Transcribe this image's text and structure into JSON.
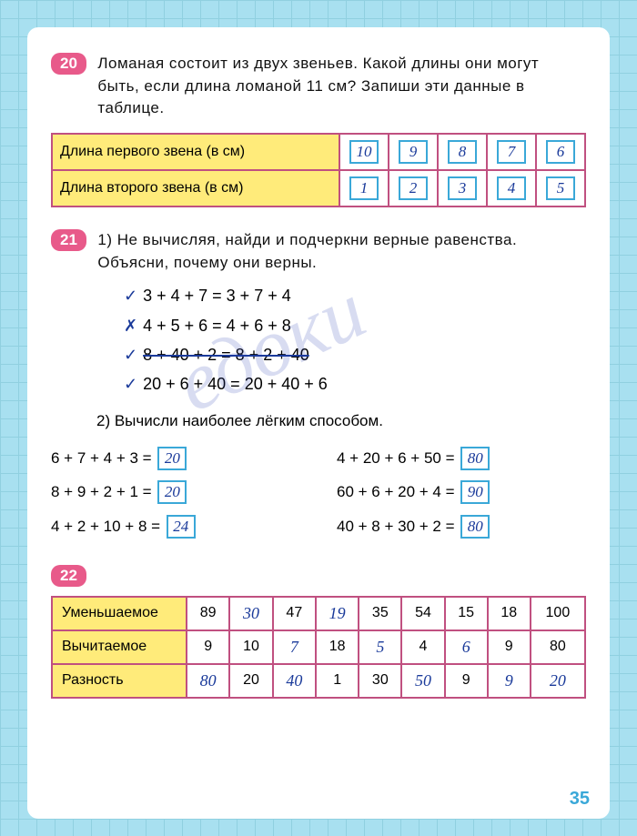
{
  "page_number": "35",
  "p20": {
    "num": "20",
    "text": "Ломаная состоит из двух звеньев. Какой длины они могут быть, если длина ломаной 11 см? Запиши эти данные в таблице.",
    "row1_label": "Длина первого звена (в см)",
    "row2_label": "Длина второго звена (в см)",
    "row1_vals": [
      "10",
      "9",
      "8",
      "7",
      "6"
    ],
    "row2_vals": [
      "1",
      "2",
      "3",
      "4",
      "5"
    ]
  },
  "p21": {
    "num": "21",
    "part1_text": "1) Не вычисляя, найди и подчеркни верные равенства. Объясни, почему они верны.",
    "equations": [
      {
        "mark": "✓",
        "text": "3 + 4 + 7 = 3 + 7 + 4"
      },
      {
        "mark": "✗",
        "text": "4 + 5 + 6 = 4 + 6 + 8"
      },
      {
        "mark": "✓",
        "text": "8 + 40 + 2 = 8 + 2 + 40",
        "strike": true
      },
      {
        "mark": "✓",
        "text": "20 + 6 + 40 = 20 + 40 + 6"
      }
    ],
    "part2_text": "2) Вычисли наиболее лёгким способом.",
    "calc_left": [
      {
        "expr": "6 + 7 + 4 + 3 =",
        "ans": "20"
      },
      {
        "expr": "8 + 9 + 2 + 1 =",
        "ans": "20"
      },
      {
        "expr": "4 + 2 + 10 + 8 =",
        "ans": "24"
      }
    ],
    "calc_right": [
      {
        "expr": "4 + 20 + 6 + 50 =",
        "ans": "80"
      },
      {
        "expr": "60 + 6 + 20 + 4 =",
        "ans": "90"
      },
      {
        "expr": "40 + 8 + 30 + 2 =",
        "ans": "80"
      }
    ]
  },
  "p22": {
    "num": "22",
    "rows": [
      {
        "label": "Уменьшаемое",
        "cells": [
          "89",
          "30",
          "47",
          "19",
          "35",
          "54",
          "15",
          "18",
          "100"
        ],
        "hand": [
          false,
          true,
          false,
          true,
          false,
          false,
          false,
          false,
          false
        ]
      },
      {
        "label": "Вычитаемое",
        "cells": [
          "9",
          "10",
          "7",
          "18",
          "5",
          "4",
          "6",
          "9",
          "80"
        ],
        "hand": [
          false,
          false,
          true,
          false,
          true,
          false,
          true,
          false,
          false
        ]
      },
      {
        "label": "Разность",
        "cells": [
          "80",
          "20",
          "40",
          "1",
          "30",
          "50",
          "9",
          "9",
          "20"
        ],
        "hand": [
          true,
          false,
          true,
          false,
          false,
          true,
          false,
          true,
          true
        ]
      }
    ]
  }
}
